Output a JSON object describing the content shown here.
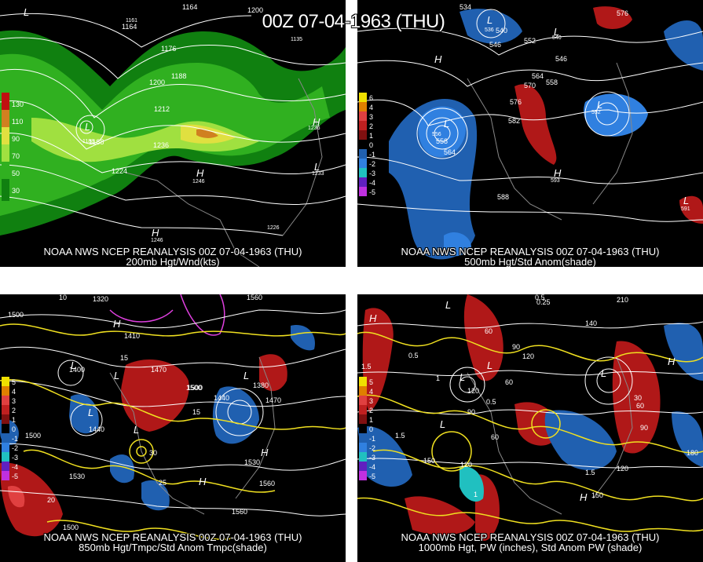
{
  "main_title": "00Z 07-04-1963 (THU)",
  "panels": [
    {
      "caption_line1": "NOAA NWS NCEP REANALYSIS 00Z 07-04-1963 (THU)",
      "caption_line2": "200mb Hgt/Wnd(kts)",
      "legend": [
        {
          "label": "130",
          "color": "#c01010"
        },
        {
          "label": "110",
          "color": "#d08020"
        },
        {
          "label": "90",
          "color": "#e0e040"
        },
        {
          "label": "70",
          "color": "#a0e040"
        },
        {
          "label": "50",
          "color": "#30b020"
        },
        {
          "label": "30",
          "color": "#108010"
        }
      ],
      "contour_labels": [
        "1164",
        "1164",
        "1200",
        "1176",
        "1200",
        "1188",
        "1212",
        "1188",
        "1236",
        "1224",
        "1135",
        "1236",
        "1233",
        "1246",
        "1246",
        "1226",
        "1188",
        "1161"
      ],
      "pressure_centers": [
        "L",
        "L",
        "H",
        "H",
        "H",
        "L"
      ]
    },
    {
      "caption_line1": "NOAA NWS NCEP REANALYSIS 00Z 07-04-1963 (THU)",
      "caption_line2": "500mb Hgt/Std Anom(shade)",
      "legend": [
        {
          "label": "6",
          "color": "#f0e000"
        },
        {
          "label": "4",
          "color": "#e08000"
        },
        {
          "label": "3",
          "color": "#e04040"
        },
        {
          "label": "2",
          "color": "#c02020"
        },
        {
          "label": "1",
          "color": "#801010"
        },
        {
          "label": "0",
          "color": "#000000"
        },
        {
          "label": "-1",
          "color": "#2060b0"
        },
        {
          "label": "-2",
          "color": "#3080e0"
        },
        {
          "label": "-3",
          "color": "#20c0c0"
        },
        {
          "label": "-4",
          "color": "#6020c0"
        },
        {
          "label": "-5",
          "color": "#c030e0"
        }
      ],
      "contour_labels": [
        "534",
        "540",
        "546",
        "552",
        "546",
        "558",
        "564",
        "570",
        "576",
        "582",
        "558",
        "564",
        "588",
        "576",
        "591",
        "552",
        "593",
        "536",
        "556",
        "540"
      ],
      "pressure_centers": [
        "L",
        "L",
        "L",
        "L",
        "H",
        "H",
        "L"
      ]
    },
    {
      "caption_line1": "NOAA NWS NCEP REANALYSIS 00Z 07-04-1963 (THU)",
      "caption_line2": "850mb Hgt/Tmpc/Std Anom Tmpc(shade)",
      "legend": [
        {
          "label": "5",
          "color": "#f0e000"
        },
        {
          "label": "4",
          "color": "#e08000"
        },
        {
          "label": "3",
          "color": "#e04040"
        },
        {
          "label": "2",
          "color": "#c02020"
        },
        {
          "label": "1",
          "color": "#801010"
        },
        {
          "label": "0",
          "color": "#000000"
        },
        {
          "label": "-1",
          "color": "#2060b0"
        },
        {
          "label": "-2",
          "color": "#3080e0"
        },
        {
          "label": "-3",
          "color": "#20c0c0"
        },
        {
          "label": "-4",
          "color": "#6020c0"
        },
        {
          "label": "-5",
          "color": "#c030e0"
        }
      ],
      "contour_labels": [
        "1320",
        "1560",
        "1500",
        "1410",
        "1400",
        "1470",
        "1500",
        "1440",
        "1380",
        "1470",
        "1500",
        "1440",
        "1530",
        "1530",
        "1560",
        "1560",
        "1500",
        "1500",
        "10",
        "15",
        "30",
        "25",
        "20",
        "15"
      ],
      "pressure_centers": [
        "L",
        "L",
        "L",
        "L",
        "L",
        "H",
        "H",
        "H"
      ]
    },
    {
      "caption_line1": "NOAA NWS NCEP REANALYSIS 00Z 07-04-1963 (THU)",
      "caption_line2": "1000mb Hgt, PW (inches), Std Anom PW (shade)",
      "legend": [
        {
          "label": "5",
          "color": "#f0e000"
        },
        {
          "label": "4",
          "color": "#e08000"
        },
        {
          "label": "3",
          "color": "#e04040"
        },
        {
          "label": "2",
          "color": "#c02020"
        },
        {
          "label": "1",
          "color": "#801010"
        },
        {
          "label": "0",
          "color": "#000000"
        },
        {
          "label": "-1",
          "color": "#2060b0"
        },
        {
          "label": "-2",
          "color": "#3080e0"
        },
        {
          "label": "-3",
          "color": "#20c0c0"
        },
        {
          "label": "-4",
          "color": "#6020c0"
        },
        {
          "label": "-5",
          "color": "#c030e0"
        }
      ],
      "contour_labels": [
        "210",
        "140",
        "60",
        "90",
        "120",
        "120",
        "90",
        "60",
        "150",
        "120",
        "60",
        "30",
        "90",
        "60",
        "180",
        "120",
        "150",
        "0.5",
        "0.5",
        "0.25",
        "1",
        "1.5",
        "0.5",
        "1.5",
        "1.5",
        "1"
      ],
      "pressure_centers": [
        "L",
        "L",
        "L",
        "L",
        "L",
        "H",
        "H",
        "H"
      ]
    }
  ],
  "colors": {
    "panel_bg": "#000000",
    "contour_white": "#ffffff",
    "contour_yellow": "#f0e020",
    "anom_red": "#b01818",
    "anom_blue": "#2060b0",
    "wind_green": "#20a020"
  }
}
